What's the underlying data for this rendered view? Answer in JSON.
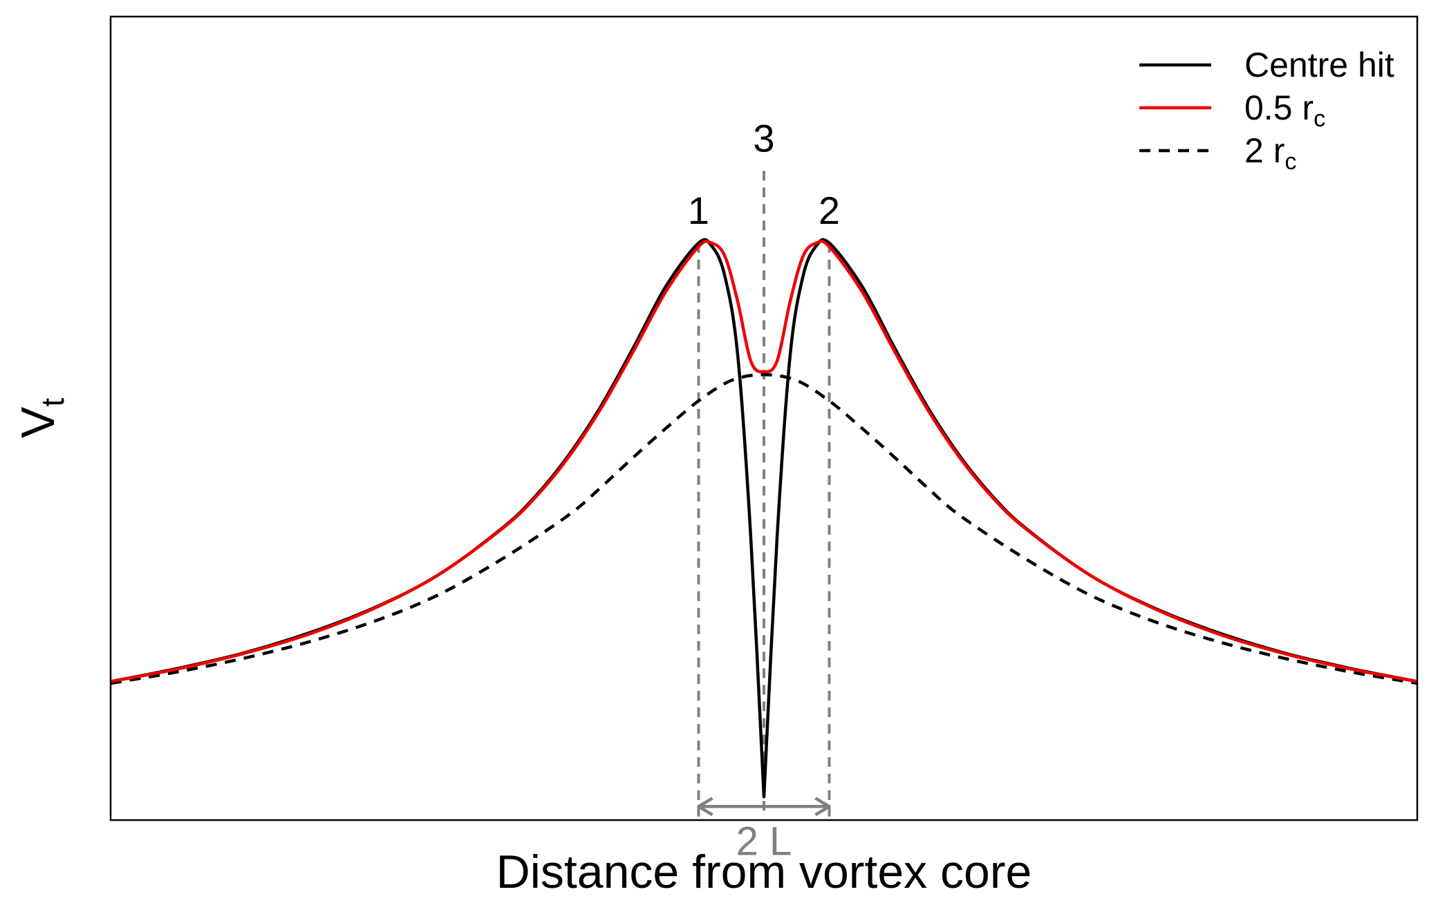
{
  "chart_data": {
    "type": "line",
    "title": "",
    "xlabel": "Distance from vortex core",
    "ylabel": {
      "main": "V",
      "sub": "t"
    },
    "xlim": [
      -5,
      5
    ],
    "ylim": [
      -0.04,
      1.34
    ],
    "grid": false,
    "axis_ticks": false,
    "legend_position": "top-right",
    "series": [
      {
        "name": "Centre hit",
        "legend": {
          "main": "Centre hit",
          "sub": ""
        },
        "color": "#000000",
        "dash": "solid",
        "x": [
          -5,
          -4.5,
          -4,
          -3.5,
          -3,
          -2.5,
          -2,
          -1.75,
          -1.5,
          -1.25,
          -1,
          -0.75,
          -0.5,
          -0.4,
          -0.3,
          -0.2,
          -0.1,
          0,
          0.1,
          0.2,
          0.3,
          0.4,
          0.5,
          0.75,
          1,
          1.25,
          1.5,
          1.75,
          2,
          2.5,
          3,
          3.5,
          4,
          4.5,
          5
        ],
        "y": [
          0.198,
          0.22,
          0.246,
          0.28,
          0.323,
          0.38,
          0.462,
          0.516,
          0.585,
          0.67,
          0.771,
          0.877,
          0.951,
          0.946,
          0.895,
          0.757,
          0.443,
          0.0,
          0.443,
          0.757,
          0.895,
          0.946,
          0.951,
          0.877,
          0.771,
          0.67,
          0.585,
          0.516,
          0.462,
          0.38,
          0.323,
          0.28,
          0.246,
          0.22,
          0.198
        ]
      },
      {
        "name": "0.5 rc",
        "legend": {
          "main": "0.5 r",
          "sub": "c"
        },
        "color": "#ee0000",
        "dash": "solid",
        "x": [
          -5,
          -4.5,
          -4,
          -3.5,
          -3,
          -2.5,
          -2,
          -1.75,
          -1.5,
          -1.25,
          -1,
          -0.75,
          -0.5,
          -0.4,
          -0.3,
          -0.2,
          -0.1,
          0,
          0.1,
          0.2,
          0.3,
          0.4,
          0.5,
          0.75,
          1,
          1.25,
          1.5,
          1.75,
          2,
          2.5,
          3,
          3.5,
          4,
          4.5,
          5
        ],
        "y": [
          0.198,
          0.219,
          0.245,
          0.278,
          0.322,
          0.38,
          0.461,
          0.514,
          0.582,
          0.666,
          0.765,
          0.868,
          0.945,
          0.951,
          0.929,
          0.85,
          0.748,
          0.73,
          0.748,
          0.85,
          0.929,
          0.951,
          0.945,
          0.868,
          0.765,
          0.666,
          0.582,
          0.514,
          0.461,
          0.38,
          0.322,
          0.278,
          0.245,
          0.219,
          0.198
        ]
      },
      {
        "name": "2 rc",
        "legend": {
          "main": "2 r",
          "sub": "c"
        },
        "color": "#000000",
        "dash": "dashed",
        "x": [
          -5,
          -4.5,
          -4,
          -3.5,
          -3,
          -2.5,
          -2,
          -1.5,
          -1.25,
          -1,
          -0.75,
          -0.5,
          -0.25,
          0,
          0.25,
          0.5,
          0.75,
          1,
          1.25,
          1.5,
          2,
          2.5,
          3,
          3.5,
          4,
          4.5,
          5
        ],
        "y": [
          0.195,
          0.214,
          0.237,
          0.265,
          0.3,
          0.346,
          0.409,
          0.483,
          0.531,
          0.583,
          0.633,
          0.68,
          0.715,
          0.725,
          0.715,
          0.68,
          0.633,
          0.583,
          0.531,
          0.483,
          0.409,
          0.346,
          0.3,
          0.265,
          0.237,
          0.214,
          0.195
        ]
      }
    ],
    "reference_lines": [
      {
        "x": -0.5,
        "y_top": 0.951,
        "label": "1"
      },
      {
        "x": 0.5,
        "y_top": 0.951,
        "label": "2"
      },
      {
        "x": 0,
        "y_top": 1.075,
        "label": "3"
      }
    ],
    "reference_style": {
      "color": "#808080",
      "dash": "dashed"
    },
    "span_annotation": {
      "x_from": -0.5,
      "x_to": 0.5,
      "y": 0.0,
      "label": "2 L",
      "color": "#808080"
    }
  }
}
